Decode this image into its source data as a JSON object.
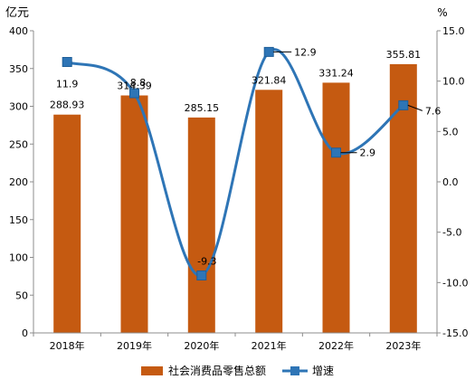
{
  "chart_data": {
    "type": "bar+line",
    "categories": [
      "2018年",
      "2019年",
      "2020年",
      "2021年",
      "2022年",
      "2023年"
    ],
    "series": [
      {
        "name": "社会消费品零售总额",
        "type": "bar",
        "axis": "left",
        "values": [
          288.93,
          314.39,
          285.15,
          321.84,
          331.24,
          355.81
        ],
        "value_labels": [
          "288.93",
          "314.39",
          "285.15",
          "321.84",
          "331.24",
          "355.81"
        ],
        "color": "#C55A11"
      },
      {
        "name": "增速",
        "type": "line",
        "axis": "right",
        "values": [
          11.9,
          8.8,
          -9.3,
          12.9,
          2.9,
          7.6
        ],
        "value_labels": [
          "11.9",
          "8.8",
          "-9.3",
          "12.9",
          "2.9",
          "7.6"
        ],
        "color": "#2E75B6"
      }
    ],
    "y_left": {
      "unit": "亿元",
      "ylim": [
        0,
        400
      ],
      "ticks": [
        0,
        50,
        100,
        150,
        200,
        250,
        300,
        350,
        400
      ],
      "tick_labels": [
        "0",
        "50",
        "100",
        "150",
        "200",
        "250",
        "300",
        "350",
        "400"
      ]
    },
    "y_right": {
      "unit": "%",
      "ylim": [
        -15,
        15
      ],
      "ticks": [
        -15,
        -10,
        -5,
        0,
        5,
        10,
        15
      ],
      "tick_labels": [
        "-15.0",
        "-10.0",
        "-5.0",
        "0.0",
        "5.0",
        "10.0",
        "15.0"
      ]
    },
    "grid": false,
    "legend_position": "bottom"
  }
}
